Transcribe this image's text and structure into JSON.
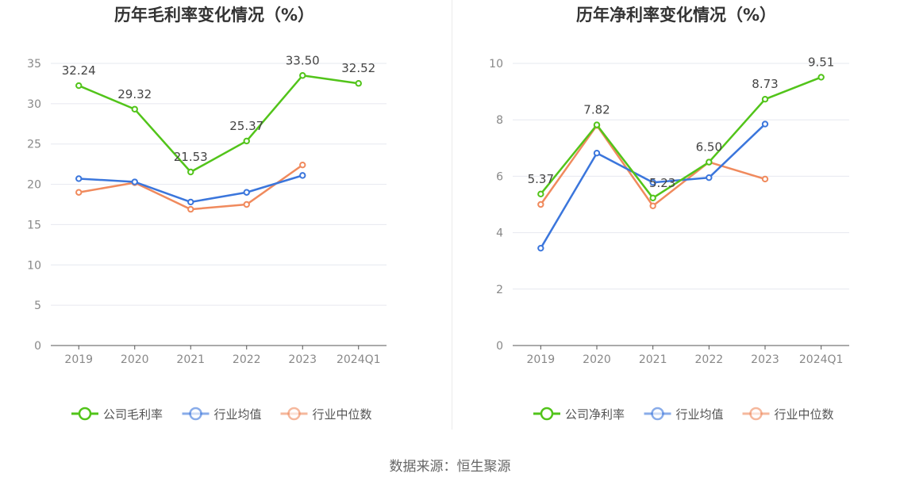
{
  "source": "数据来源：恒生聚源",
  "colors": {
    "company": "#52c41a",
    "avg": "#3b76dc",
    "median": "#f08a5d",
    "grid": "#e6e8ef",
    "axis": "#555555",
    "tick": "#888888"
  },
  "chart_data": [
    {
      "type": "line",
      "title": "历年毛利率变化情况（%）",
      "categories": [
        "2019",
        "2020",
        "2021",
        "2022",
        "2023",
        "2024Q1"
      ],
      "ylim": [
        0,
        35
      ],
      "yticks": [
        0,
        5,
        10,
        15,
        20,
        25,
        30,
        35
      ],
      "grid": true,
      "legend_position": "bottom",
      "series": [
        {
          "name": "公司毛利率",
          "color": "#52c41a",
          "labels": true,
          "values": [
            32.24,
            29.32,
            21.53,
            25.37,
            33.5,
            32.52
          ],
          "value_labels": [
            "32.24",
            "29.32",
            "21.53",
            "25.37",
            "33.50",
            "32.52"
          ]
        },
        {
          "name": "行业均值",
          "color": "#3b76dc",
          "labels": false,
          "values": [
            20.7,
            20.3,
            17.8,
            19.0,
            21.1,
            null
          ]
        },
        {
          "name": "行业中位数",
          "color": "#f08a5d",
          "labels": false,
          "values": [
            19.0,
            20.2,
            16.9,
            17.5,
            22.4,
            null
          ]
        }
      ]
    },
    {
      "type": "line",
      "title": "历年净利率变化情况（%）",
      "categories": [
        "2019",
        "2020",
        "2021",
        "2022",
        "2023",
        "2024Q1"
      ],
      "ylim": [
        0,
        10
      ],
      "yticks": [
        0,
        2,
        4,
        6,
        8,
        10
      ],
      "grid": true,
      "legend_position": "bottom",
      "series": [
        {
          "name": "公司净利率",
          "color": "#52c41a",
          "labels": true,
          "values": [
            5.37,
            7.82,
            5.23,
            6.5,
            8.73,
            9.51
          ],
          "value_labels": [
            "5.37",
            "7.82",
            "5.23",
            "6.50",
            "8.73",
            "9.51"
          ]
        },
        {
          "name": "行业均值",
          "color": "#3b76dc",
          "labels": false,
          "values": [
            3.45,
            6.82,
            5.78,
            5.95,
            7.85,
            null
          ]
        },
        {
          "name": "行业中位数",
          "color": "#f08a5d",
          "labels": false,
          "values": [
            5.0,
            7.8,
            4.95,
            6.5,
            5.9,
            null
          ]
        }
      ]
    }
  ]
}
